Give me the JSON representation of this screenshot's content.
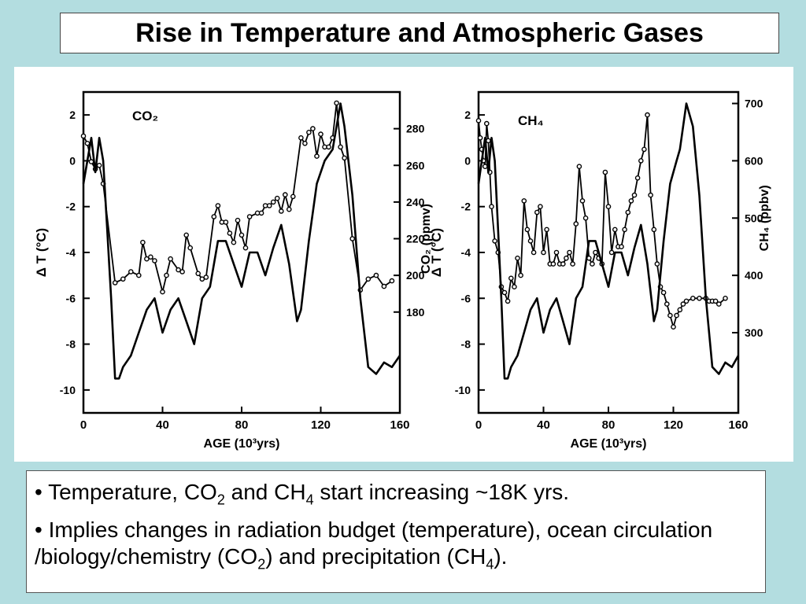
{
  "title": "Rise in Temperature and Atmospheric Gases",
  "chart_data": [
    {
      "type": "line",
      "panel_label": "CO₂",
      "xlabel": "AGE (10³yrs)",
      "ylabel_left": "Δ T (°C)",
      "ylabel_right": "CO₂ (ppmv)",
      "x_ticks": [
        "0",
        "40",
        "80",
        "120",
        "160"
      ],
      "y_left_ticks": [
        "2",
        "0",
        "-2",
        "-4",
        "-6",
        "-8",
        "-10"
      ],
      "y_right_ticks": [
        "280",
        "260",
        "240",
        "220",
        "200",
        "180"
      ],
      "xlim": [
        0,
        160
      ],
      "ylim_left": [
        -11,
        3
      ],
      "ylim_right": [
        125,
        300
      ],
      "series": [
        {
          "name": "CO₂",
          "axis": "right",
          "markers": true,
          "x": [
            0,
            2,
            4,
            6,
            8,
            10,
            16,
            20,
            24,
            28,
            30,
            32,
            34,
            36,
            40,
            42,
            44,
            48,
            50,
            52,
            54,
            58,
            60,
            62,
            66,
            68,
            70,
            72,
            74,
            76,
            78,
            80,
            82,
            84,
            88,
            90,
            92,
            94,
            96,
            98,
            100,
            102,
            104,
            106,
            110,
            112,
            114,
            116,
            118,
            120,
            122,
            124,
            126,
            128,
            130,
            132,
            136,
            140,
            144,
            148,
            152,
            156
          ],
          "y": [
            276,
            272,
            262,
            258,
            260,
            250,
            196,
            198,
            202,
            200,
            218,
            209,
            210,
            208,
            191,
            200,
            209,
            203,
            202,
            222,
            215,
            201,
            198,
            199,
            232,
            238,
            229,
            229,
            223,
            218,
            230,
            222,
            215,
            232,
            234,
            234,
            238,
            238,
            240,
            242,
            235,
            244,
            236,
            243,
            275,
            272,
            278,
            280,
            265,
            277,
            270,
            270,
            275,
            294,
            270,
            264,
            220,
            192,
            198,
            200,
            194,
            197
          ]
        },
        {
          "name": "Δ T",
          "axis": "left",
          "markers": false,
          "x": [
            0,
            2,
            4,
            6,
            8,
            10,
            12,
            14,
            16,
            18,
            20,
            24,
            28,
            32,
            36,
            40,
            44,
            48,
            52,
            56,
            60,
            64,
            68,
            72,
            76,
            80,
            84,
            88,
            92,
            96,
            100,
            104,
            108,
            110,
            114,
            118,
            122,
            126,
            128,
            130,
            132,
            136,
            140,
            144,
            148,
            152,
            156,
            160
          ],
          "y": [
            -1,
            0,
            1,
            -0.5,
            1,
            0,
            -3,
            -6,
            -9.5,
            -9.5,
            -9,
            -8.5,
            -7.5,
            -6.5,
            -6,
            -7.5,
            -6.5,
            -6,
            -7,
            -8,
            -6,
            -5.5,
            -3.5,
            -3.5,
            -4.5,
            -5.5,
            -4,
            -4,
            -5,
            -3.8,
            -2.8,
            -4.5,
            -7,
            -6.5,
            -3.5,
            -1,
            0,
            0.5,
            1.5,
            2.5,
            1.5,
            -1.5,
            -6,
            -9,
            -9.3,
            -8.8,
            -9,
            -8.5
          ]
        }
      ]
    },
    {
      "type": "line",
      "panel_label": "CH₄",
      "xlabel": "AGE (10³yrs)",
      "ylabel_left": "Δ T (°C)",
      "ylabel_right": "CH₄ (ppbv)",
      "x_ticks": [
        "0",
        "40",
        "80",
        "120",
        "160"
      ],
      "y_left_ticks": [
        "2",
        "0",
        "-2",
        "-4",
        "-6",
        "-8",
        "-10"
      ],
      "y_right_ticks": [
        "700",
        "600",
        "500",
        "400",
        "300"
      ],
      "xlim": [
        0,
        160
      ],
      "ylim_left": [
        -11,
        3
      ],
      "ylim_right": [
        160,
        720
      ],
      "series": [
        {
          "name": "CH₄",
          "axis": "right",
          "markers": true,
          "x": [
            0,
            1,
            2,
            3,
            4,
            5,
            6,
            7,
            8,
            10,
            12,
            14,
            16,
            18,
            20,
            22,
            24,
            26,
            28,
            30,
            32,
            34,
            36,
            38,
            40,
            42,
            44,
            46,
            48,
            50,
            52,
            54,
            56,
            58,
            60,
            62,
            64,
            66,
            68,
            70,
            72,
            74,
            76,
            78,
            80,
            82,
            84,
            86,
            88,
            90,
            92,
            94,
            96,
            98,
            100,
            102,
            104,
            106,
            108,
            110,
            112,
            114,
            116,
            118,
            120,
            122,
            124,
            126,
            128,
            132,
            136,
            140,
            142,
            144,
            146,
            148,
            152
          ],
          "y": [
            670,
            640,
            620,
            600,
            590,
            665,
            635,
            580,
            520,
            460,
            440,
            380,
            370,
            355,
            395,
            380,
            430,
            400,
            530,
            480,
            460,
            440,
            510,
            520,
            440,
            480,
            420,
            420,
            440,
            420,
            420,
            430,
            440,
            420,
            490,
            590,
            530,
            500,
            430,
            420,
            440,
            430,
            420,
            580,
            520,
            440,
            480,
            450,
            450,
            480,
            510,
            530,
            540,
            570,
            600,
            620,
            680,
            540,
            480,
            420,
            380,
            370,
            350,
            330,
            310,
            330,
            340,
            350,
            355,
            360,
            360,
            360,
            355,
            355,
            355,
            350,
            360
          ]
        },
        {
          "name": "Δ T",
          "axis": "left",
          "markers": false,
          "x": [
            0,
            2,
            4,
            6,
            8,
            10,
            12,
            14,
            16,
            18,
            20,
            24,
            28,
            32,
            36,
            40,
            44,
            48,
            52,
            56,
            60,
            64,
            68,
            72,
            76,
            80,
            84,
            88,
            92,
            96,
            100,
            104,
            108,
            110,
            114,
            118,
            122,
            124,
            126,
            128,
            132,
            136,
            140,
            144,
            148,
            152,
            156,
            160
          ],
          "y": [
            -1,
            0,
            1,
            -0.5,
            1,
            0,
            -3,
            -6,
            -9.5,
            -9.5,
            -9,
            -8.5,
            -7.5,
            -6.5,
            -6,
            -7.5,
            -6.5,
            -6,
            -7,
            -8,
            -6,
            -5.5,
            -3.5,
            -3.5,
            -4.5,
            -5.5,
            -4,
            -4,
            -5,
            -3.8,
            -2.8,
            -4.5,
            -7,
            -6.5,
            -3.5,
            -1,
            0,
            0.5,
            1.5,
            2.5,
            1.5,
            -1.5,
            -6,
            -9,
            -9.3,
            -8.8,
            -9,
            -8.5
          ]
        }
      ]
    }
  ],
  "bullets": {
    "b1": {
      "a": "• Temperature, CO",
      "s1": "2",
      "b": " and CH",
      "s2": "4",
      "c": " start increasing ~18K yrs."
    },
    "b2": {
      "a": "• Implies changes in radiation budget (temperature), ocean circulation /biology/chemistry (CO",
      "s1": "2",
      "b": ") and precipitation (CH",
      "s2": "4",
      "c": ")."
    }
  }
}
